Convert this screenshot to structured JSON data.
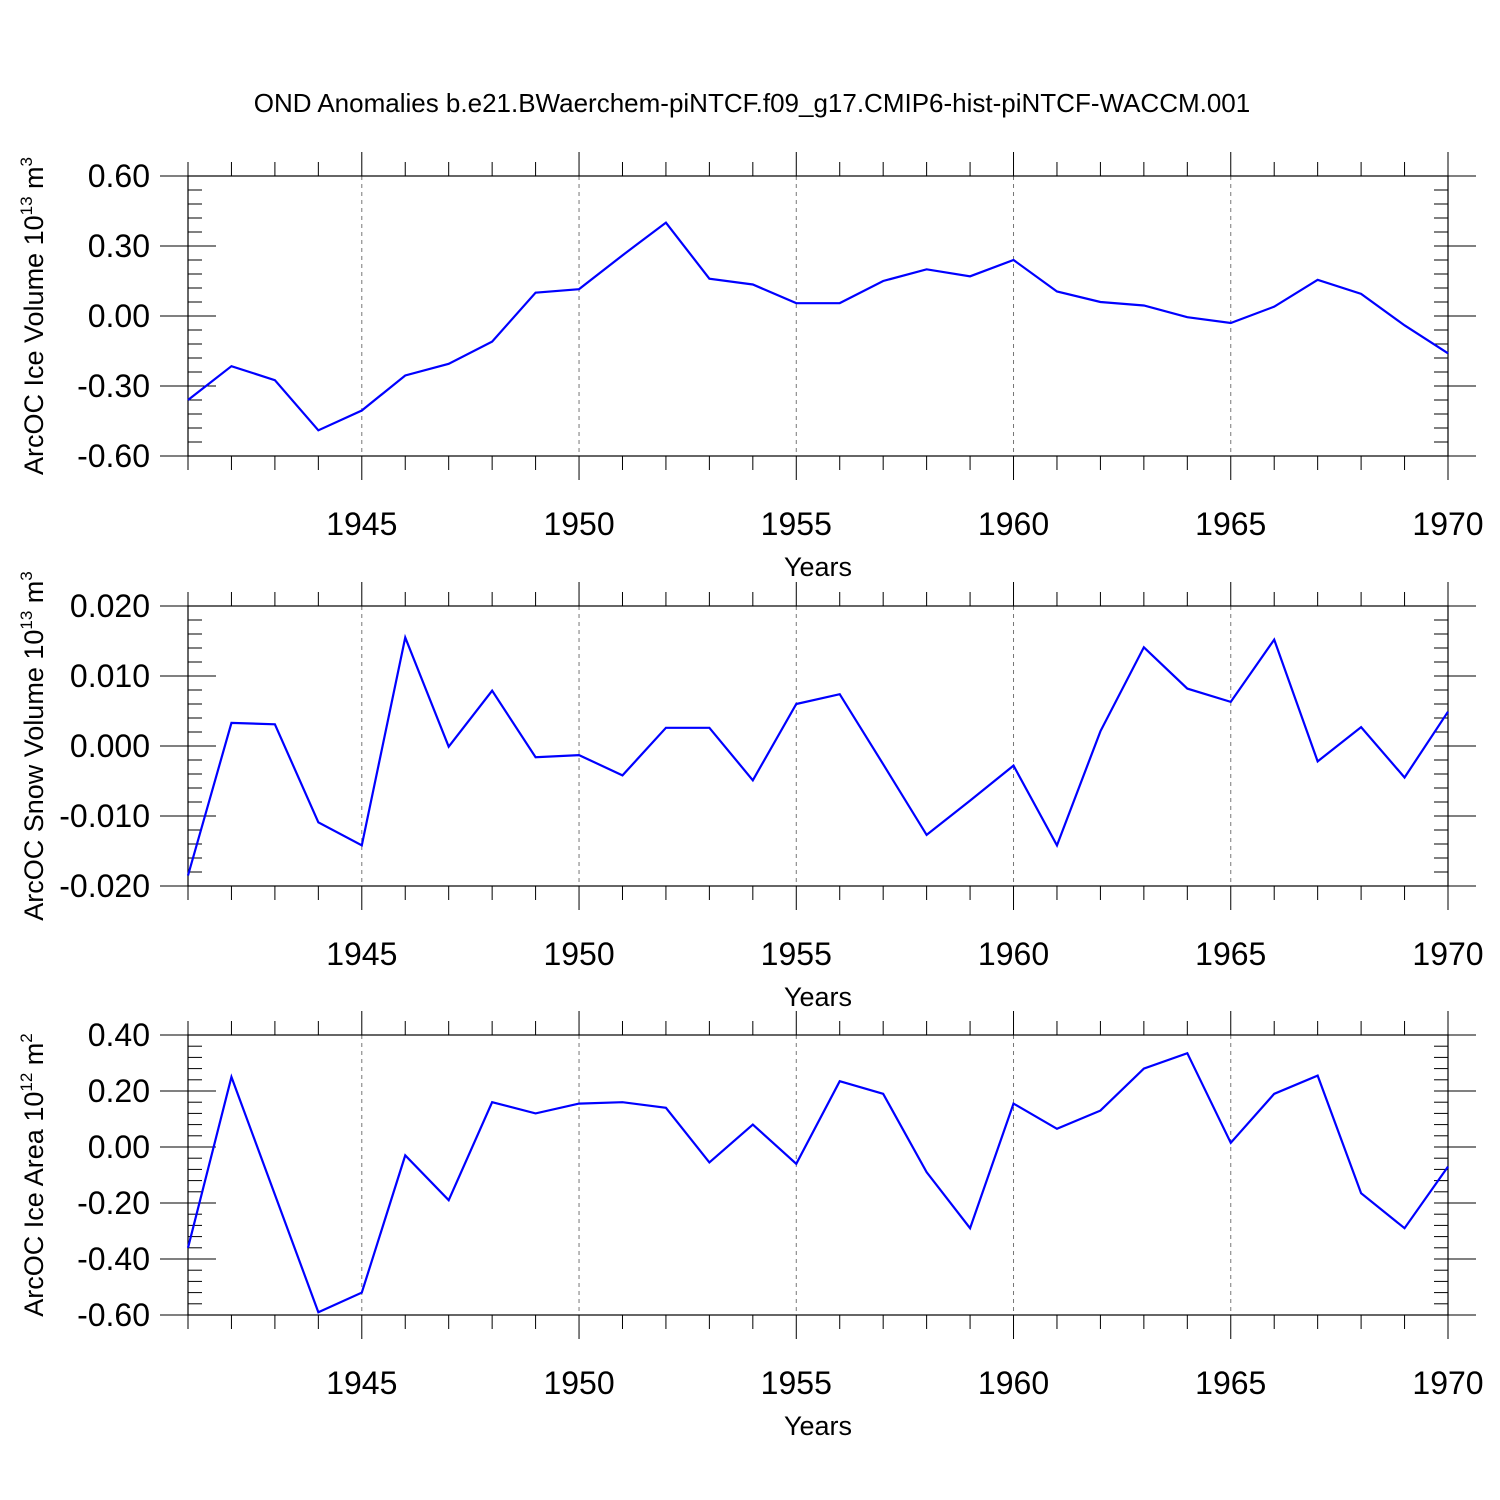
{
  "title": "OND Anomalies b.e21.BWaerchem-piNTCF.f09_g17.CMIP6-hist-piNTCF-WACCM.001",
  "line_color": "#0000ff",
  "chart_data": [
    {
      "type": "line",
      "ylabel": "ArcOC Ice Volume 10",
      "ylabel_exp": "13",
      "ylabel_unit": " m",
      "ylabel_unit_exp": "3",
      "xlabel": "Years",
      "xlim": [
        1941,
        1970
      ],
      "ylim": [
        -0.6,
        0.6
      ],
      "yticks": [
        -0.6,
        -0.3,
        0.0,
        0.3,
        0.6
      ],
      "ytick_labels": [
        "-0.60",
        "-0.30",
        "0.00",
        "0.30",
        "0.60"
      ],
      "xticks": [
        1945,
        1950,
        1955,
        1960,
        1965,
        1970
      ],
      "xtick_labels": [
        "1945",
        "1950",
        "1955",
        "1960",
        "1965",
        "1970"
      ],
      "x": [
        1941,
        1942,
        1943,
        1944,
        1945,
        1946,
        1947,
        1948,
        1949,
        1950,
        1951,
        1952,
        1953,
        1954,
        1955,
        1956,
        1957,
        1958,
        1959,
        1960,
        1961,
        1962,
        1963,
        1964,
        1965,
        1966,
        1967,
        1968,
        1969,
        1970
      ],
      "values": [
        -0.36,
        -0.215,
        -0.275,
        -0.49,
        -0.405,
        -0.255,
        -0.205,
        -0.11,
        0.1,
        0.115,
        0.26,
        0.4,
        0.16,
        0.135,
        0.055,
        0.055,
        0.15,
        0.2,
        0.17,
        0.24,
        0.105,
        0.06,
        0.045,
        -0.005,
        -0.03,
        0.04,
        0.155,
        0.095,
        -0.04,
        -0.16
      ]
    },
    {
      "type": "line",
      "ylabel": "ArcOC Snow Volume 10",
      "ylabel_exp": "13",
      "ylabel_unit": " m",
      "ylabel_unit_exp": "3",
      "xlabel": "Years",
      "xlim": [
        1941,
        1970
      ],
      "ylim": [
        -0.02,
        0.02
      ],
      "yticks": [
        -0.02,
        -0.01,
        0.0,
        0.01,
        0.02
      ],
      "ytick_labels": [
        "-0.020",
        "-0.010",
        "0.000",
        "0.010",
        "0.020"
      ],
      "xticks": [
        1945,
        1950,
        1955,
        1960,
        1965,
        1970
      ],
      "xtick_labels": [
        "1945",
        "1950",
        "1955",
        "1960",
        "1965",
        "1970"
      ],
      "x": [
        1941,
        1942,
        1943,
        1944,
        1945,
        1946,
        1947,
        1948,
        1949,
        1950,
        1951,
        1952,
        1953,
        1954,
        1955,
        1956,
        1957,
        1958,
        1959,
        1960,
        1961,
        1962,
        1963,
        1964,
        1965,
        1966,
        1967,
        1968,
        1969,
        1970
      ],
      "values": [
        -0.0185,
        0.0033,
        0.0031,
        -0.0109,
        -0.0142,
        0.0155,
        -0.0001,
        0.0079,
        -0.0016,
        -0.0013,
        -0.0042,
        0.0026,
        0.0026,
        -0.0049,
        0.006,
        0.0074,
        -0.0026,
        -0.0127,
        -0.0078,
        -0.0028,
        -0.0142,
        0.0021,
        0.0141,
        0.0082,
        0.0063,
        0.0152,
        -0.0022,
        0.0027,
        -0.0045,
        0.0049
      ]
    },
    {
      "type": "line",
      "ylabel": "ArcOC Ice Area 10",
      "ylabel_exp": "12",
      "ylabel_unit": " m",
      "ylabel_unit_exp": "2",
      "xlabel": "Years",
      "xlim": [
        1941,
        1970
      ],
      "ylim": [
        -0.6,
        0.4
      ],
      "yticks": [
        -0.6,
        -0.4,
        -0.2,
        0.0,
        0.2,
        0.4
      ],
      "ytick_labels": [
        "-0.60",
        "-0.40",
        "-0.20",
        "0.00",
        "0.20",
        "0.40"
      ],
      "xticks": [
        1945,
        1950,
        1955,
        1960,
        1965,
        1970
      ],
      "xtick_labels": [
        "1945",
        "1950",
        "1955",
        "1960",
        "1965",
        "1970"
      ],
      "x": [
        1941,
        1942,
        1943,
        1944,
        1945,
        1946,
        1947,
        1948,
        1949,
        1950,
        1951,
        1952,
        1953,
        1954,
        1955,
        1956,
        1957,
        1958,
        1959,
        1960,
        1961,
        1962,
        1963,
        1964,
        1965,
        1966,
        1967,
        1968,
        1969,
        1970
      ],
      "values": [
        -0.36,
        0.25,
        -0.17,
        -0.59,
        -0.52,
        -0.03,
        -0.19,
        0.16,
        0.12,
        0.155,
        0.16,
        0.14,
        -0.055,
        0.08,
        -0.06,
        0.235,
        0.19,
        -0.09,
        -0.29,
        0.155,
        0.065,
        0.13,
        0.28,
        0.335,
        0.015,
        0.19,
        0.255,
        -0.165,
        -0.29,
        -0.07
      ]
    }
  ]
}
